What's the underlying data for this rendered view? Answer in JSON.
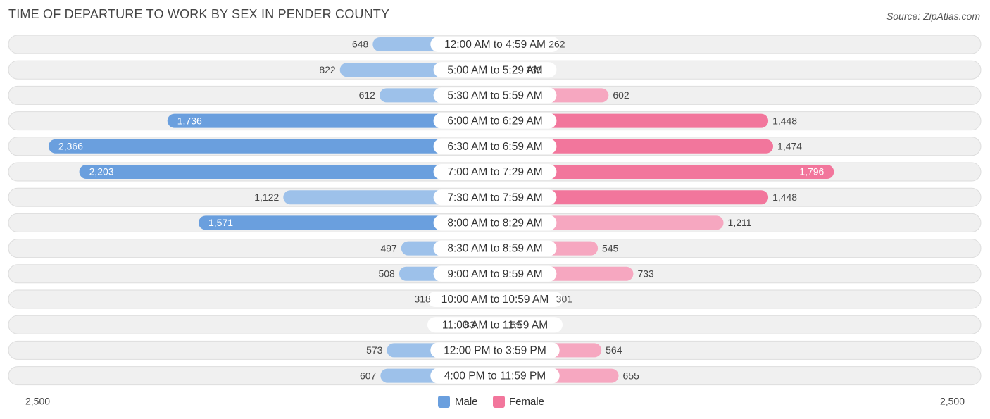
{
  "header": {
    "title": "Time of Departure to Work by Sex in Pender County",
    "source": "Source: ZipAtlas.com"
  },
  "colors": {
    "male_dark": "#6a9fde",
    "male_light": "#9dc1ea",
    "female_dark": "#f2769c",
    "female_light": "#f6a7c0",
    "row_bg": "#f0f0f0",
    "row_border": "#dddddd"
  },
  "chart_data": {
    "type": "bar",
    "orientation": "horizontal-diverging",
    "title": "Time of Departure to Work by Sex in Pender County",
    "categories": [
      "12:00 AM to 4:59 AM",
      "5:00 AM to 5:29 AM",
      "5:30 AM to 5:59 AM",
      "6:00 AM to 6:29 AM",
      "6:30 AM to 6:59 AM",
      "7:00 AM to 7:29 AM",
      "7:30 AM to 7:59 AM",
      "8:00 AM to 8:29 AM",
      "8:30 AM to 8:59 AM",
      "9:00 AM to 9:59 AM",
      "10:00 AM to 10:59 AM",
      "11:00 AM to 11:59 AM",
      "12:00 PM to 3:59 PM",
      "4:00 PM to 11:59 PM"
    ],
    "series": [
      {
        "name": "Male",
        "values": [
          648,
          822,
          612,
          1736,
          2366,
          2203,
          1122,
          1571,
          497,
          508,
          318,
          83,
          573,
          607
        ],
        "labels": [
          "648",
          "822",
          "612",
          "1,736",
          "2,366",
          "2,203",
          "1,122",
          "1,571",
          "497",
          "508",
          "318",
          "83",
          "573",
          "607"
        ]
      },
      {
        "name": "Female",
        "values": [
          262,
          139,
          602,
          1448,
          1474,
          1796,
          1448,
          1211,
          545,
          733,
          301,
          59,
          564,
          655
        ],
        "labels": [
          "262",
          "139",
          "602",
          "1,448",
          "1,474",
          "1,796",
          "1,448",
          "1,211",
          "545",
          "733",
          "301",
          "59",
          "564",
          "655"
        ]
      }
    ],
    "axis": {
      "max": 2500,
      "left_label": "2,500",
      "right_label": "2,500"
    },
    "legend": [
      "Male",
      "Female"
    ],
    "legend_position": "bottom-center"
  }
}
